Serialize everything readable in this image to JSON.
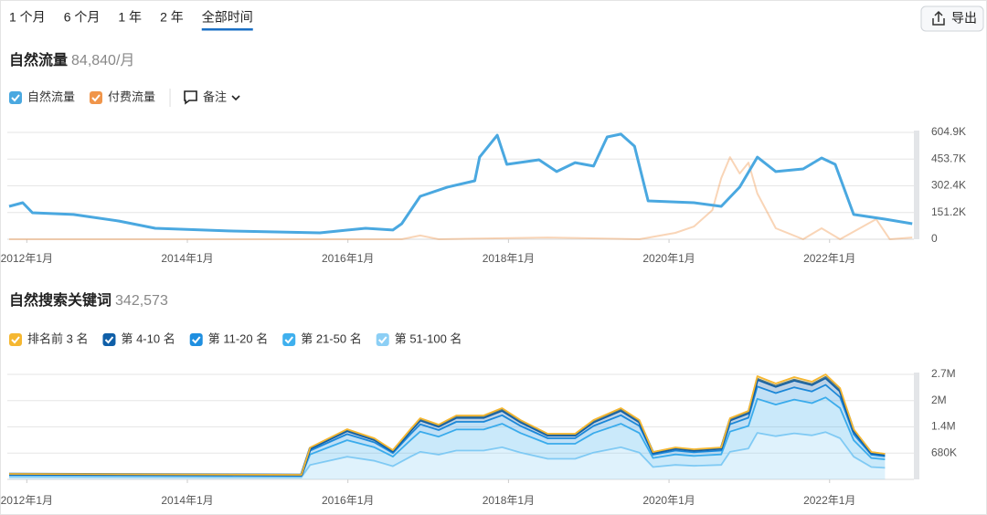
{
  "ui": {
    "tabs": [
      "1 个月",
      "6 个月",
      "1 年",
      "2 年",
      "全部时间"
    ],
    "active_tab": 4,
    "export": "导出",
    "note": "备注"
  },
  "chart_data": [
    {
      "type": "line",
      "title": "自然流量",
      "subtitle": "84,840/月",
      "xlim": [
        2011.78,
        2023.05
      ],
      "ylim": [
        0,
        604900
      ],
      "grid": true,
      "xticks": [
        {
          "value": 2012,
          "label": "2012年1月"
        },
        {
          "value": 2014,
          "label": "2014年1月"
        },
        {
          "value": 2016,
          "label": "2016年1月"
        },
        {
          "value": 2018,
          "label": "2018年1月"
        },
        {
          "value": 2020,
          "label": "2020年1月"
        },
        {
          "value": 2022,
          "label": "2022年1月"
        }
      ],
      "yticks": [
        0,
        {
          "value": 151200,
          "label": "151.2K"
        },
        {
          "value": 302400,
          "label": "302.4K"
        },
        {
          "value": 453700,
          "label": "453.7K"
        },
        {
          "value": 604900,
          "label": "604.9K"
        }
      ],
      "series": [
        {
          "name": "自然流量",
          "color": "#4aa8e0",
          "x": [
            2011.78,
            2011.95,
            2012.07,
            2012.58,
            2013.15,
            2013.6,
            2014.51,
            2015.65,
            2016.22,
            2016.56,
            2016.67,
            2016.9,
            2017.24,
            2017.58,
            2017.64,
            2017.86,
            2017.98,
            2018.38,
            2018.6,
            2018.83,
            2019.06,
            2019.23,
            2019.4,
            2019.57,
            2019.74,
            2020.31,
            2020.65,
            2020.88,
            2021.1,
            2021.33,
            2021.67,
            2021.9,
            2022.07,
            2022.3,
            2022.69,
            2023.03
          ],
          "values": [
            186000,
            207000,
            150000,
            140000,
            103000,
            62000,
            47000,
            36000,
            62000,
            52000,
            88000,
            243000,
            295000,
            331000,
            465000,
            589000,
            424000,
            450000,
            383000,
            434000,
            414000,
            579000,
            595000,
            527000,
            217000,
            207000,
            186000,
            295000,
            465000,
            383000,
            398000,
            460000,
            424000,
            140000,
            114000,
            88000
          ]
        },
        {
          "name": "付费流量",
          "color": "#f0954a",
          "x": [
            2011.78,
            2016.67,
            2016.9,
            2017.13,
            2018.49,
            2019.63,
            2020.08,
            2020.31,
            2020.54,
            2020.65,
            2020.76,
            2020.88,
            2020.99,
            2021.1,
            2021.33,
            2021.67,
            2021.9,
            2022.13,
            2022.58,
            2022.75,
            2023.03
          ],
          "values": [
            0,
            0,
            21000,
            0,
            10000,
            0,
            36000,
            72000,
            165000,
            346000,
            465000,
            372000,
            434000,
            259000,
            62000,
            0,
            62000,
            0,
            114000,
            0,
            10000
          ]
        }
      ]
    },
    {
      "type": "stacked_area",
      "title": "自然搜索关键词",
      "subtitle": "342,573",
      "xlim": [
        2011.78,
        2023.05
      ],
      "ylim": [
        0,
        2720000
      ],
      "grid": true,
      "xticks": [
        {
          "value": 2012,
          "label": "2012年1月"
        },
        {
          "value": 2014,
          "label": "2014年1月"
        },
        {
          "value": 2016,
          "label": "2016年1月"
        },
        {
          "value": 2018,
          "label": "2018年1月"
        },
        {
          "value": 2020,
          "label": "2020年1月"
        },
        {
          "value": 2022,
          "label": "2022年1月"
        }
      ],
      "yticks": [
        {
          "value": 680000,
          "label": "680K"
        },
        {
          "value": 1360000,
          "label": "1.4M"
        },
        {
          "value": 2040000,
          "label": "2M"
        },
        {
          "value": 2720000,
          "label": "2.7M"
        }
      ],
      "x": [
        2011.78,
        2015.42,
        2015.53,
        2015.76,
        2015.99,
        2016.33,
        2016.56,
        2016.78,
        2016.9,
        2017.13,
        2017.35,
        2017.69,
        2017.92,
        2018.15,
        2018.49,
        2018.83,
        2019.06,
        2019.4,
        2019.63,
        2019.8,
        2020.08,
        2020.31,
        2020.65,
        2020.76,
        2020.99,
        2021.1,
        2021.33,
        2021.56,
        2021.78,
        2021.95,
        2022.13,
        2022.3,
        2022.52,
        2022.69
      ],
      "series": [
        {
          "name": "排名前 3 名",
          "color": "#f5b731",
          "values": [
            4000,
            4000,
            25000,
            32000,
            39000,
            32000,
            23000,
            39000,
            48000,
            43000,
            50000,
            50000,
            55000,
            46000,
            35000,
            35000,
            46000,
            55000,
            46000,
            21000,
            25000,
            23000,
            25000,
            48000,
            53000,
            80000,
            74000,
            79000,
            76000,
            82000,
            71000,
            39000,
            21000,
            20000
          ]
        },
        {
          "name": "第 4-10 名",
          "color": "#0f5fa8",
          "values": [
            10000,
            8000,
            58000,
            74000,
            91000,
            74000,
            53000,
            91000,
            111000,
            99000,
            116000,
            116000,
            129000,
            108000,
            83000,
            83000,
            108000,
            129000,
            108000,
            50000,
            58000,
            55000,
            58000,
            111000,
            124000,
            187000,
            174000,
            185000,
            177000,
            190000,
            166000,
            91000,
            50000,
            46000
          ]
        },
        {
          "name": "第 11-20 名",
          "color": "#1f8fe0",
          "values": [
            17000,
            14000,
            99000,
            128000,
            156000,
            128000,
            91000,
            156000,
            190000,
            170000,
            199000,
            199000,
            221000,
            184000,
            142000,
            142000,
            184000,
            221000,
            184000,
            85000,
            99000,
            94000,
            99000,
            190000,
            213000,
            321000,
            298000,
            318000,
            304000,
            326000,
            284000,
            156000,
            85000,
            79000
          ]
        },
        {
          "name": "第 21-50 名",
          "color": "#3fb0ee",
          "values": [
            47000,
            39000,
            273000,
            351000,
            429000,
            351000,
            250000,
            429000,
            523000,
            468000,
            546000,
            546000,
            609000,
            507000,
            390000,
            390000,
            507000,
            609000,
            507000,
            234000,
            273000,
            258000,
            273000,
            523000,
            585000,
            882000,
            819000,
            874000,
            835000,
            898000,
            780000,
            429000,
            234000,
            218000
          ]
        },
        {
          "name": "第 51-100 名",
          "color": "#8ccff5",
          "values": [
            64000,
            53000,
            373000,
            479000,
            586000,
            479000,
            340000,
            586000,
            713000,
            639000,
            745000,
            745000,
            831000,
            692000,
            533000,
            533000,
            692000,
            831000,
            692000,
            320000,
            373000,
            351000,
            373000,
            713000,
            799000,
            1203000,
            1118000,
            1193000,
            1139000,
            1224000,
            1064000,
            586000,
            320000,
            299000
          ]
        }
      ]
    }
  ]
}
